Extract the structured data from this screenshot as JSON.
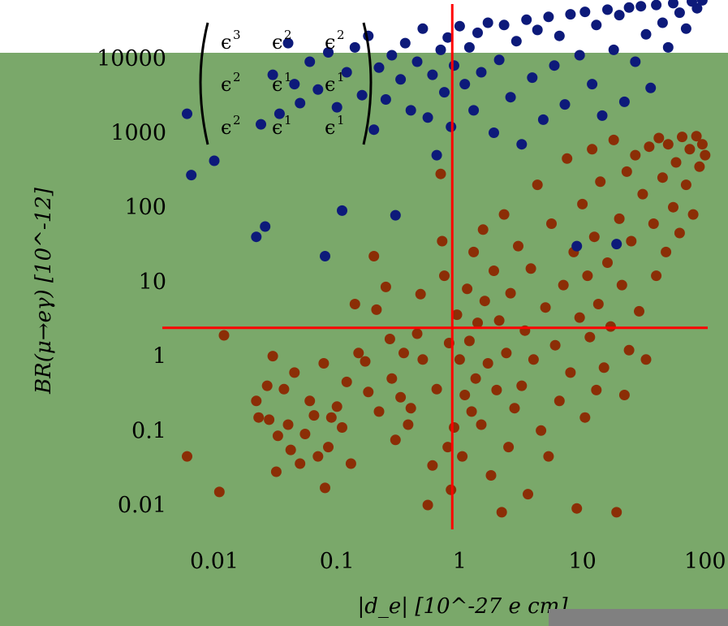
{
  "chart_data": {
    "type": "scatter",
    "x_scale": "log",
    "y_scale": "log",
    "xlim": [
      0.005,
      110
    ],
    "ylim": [
      0.005,
      50000
    ],
    "xlabel": "|d_e| [10^-27 e cm]",
    "ylabel": "BR(μ→eγ) [10^-12]",
    "x_ticks": [
      {
        "value": 0.01,
        "label": "0.01"
      },
      {
        "value": 0.1,
        "label": "0.1"
      },
      {
        "value": 1,
        "label": "1"
      },
      {
        "value": 10,
        "label": "10"
      },
      {
        "value": 100,
        "label": "100"
      }
    ],
    "y_ticks": [
      {
        "value": 0.01,
        "label": "0.01"
      },
      {
        "value": 0.1,
        "label": "0.1"
      },
      {
        "value": 1,
        "label": "1"
      },
      {
        "value": 10,
        "label": "10"
      },
      {
        "value": 100,
        "label": "100"
      },
      {
        "value": 1000,
        "label": "1000"
      },
      {
        "value": 10000,
        "label": "10000"
      }
    ],
    "reference_lines": {
      "vertical_x": 0.87,
      "horizontal_y": 2.4,
      "color": "#ff0000"
    },
    "matrix_annotation": {
      "rows": [
        [
          {
            "base": "ϵ",
            "exp": "3"
          },
          {
            "base": "ϵ",
            "exp": "2"
          },
          {
            "base": "ϵ",
            "exp": "2"
          }
        ],
        [
          {
            "base": "ϵ",
            "exp": "2"
          },
          {
            "base": "ϵ",
            "exp": "1"
          },
          {
            "base": "ϵ",
            "exp": "1"
          }
        ],
        [
          {
            "base": "ϵ",
            "exp": "2"
          },
          {
            "base": "ϵ",
            "exp": "1"
          },
          {
            "base": "ϵ",
            "exp": "1"
          }
        ]
      ]
    },
    "background_color": "#7aa86a",
    "series": [
      {
        "color": "#8b2e06",
        "points": [
          [
            0.006,
            0.045
          ],
          [
            0.011,
            0.015
          ],
          [
            0.012,
            1.9
          ],
          [
            0.022,
            0.25
          ],
          [
            0.023,
            0.15
          ],
          [
            0.027,
            0.4
          ],
          [
            0.028,
            0.14
          ],
          [
            0.03,
            1.0
          ],
          [
            0.032,
            0.028
          ],
          [
            0.033,
            0.085
          ],
          [
            0.037,
            0.36
          ],
          [
            0.04,
            0.12
          ],
          [
            0.042,
            0.055
          ],
          [
            0.045,
            0.6
          ],
          [
            0.05,
            0.036
          ],
          [
            0.055,
            0.09
          ],
          [
            0.06,
            0.25
          ],
          [
            0.065,
            0.16
          ],
          [
            0.07,
            0.045
          ],
          [
            0.078,
            0.8
          ],
          [
            0.08,
            0.017
          ],
          [
            0.085,
            0.06
          ],
          [
            0.09,
            0.15
          ],
          [
            0.1,
            0.21
          ],
          [
            0.11,
            0.11
          ],
          [
            0.12,
            0.45
          ],
          [
            0.13,
            0.036
          ],
          [
            0.14,
            5.0
          ],
          [
            0.15,
            1.1
          ],
          [
            0.17,
            0.85
          ],
          [
            0.18,
            0.33
          ],
          [
            0.2,
            22
          ],
          [
            0.21,
            4.2
          ],
          [
            0.22,
            0.18
          ],
          [
            0.25,
            8.5
          ],
          [
            0.27,
            1.7
          ],
          [
            0.28,
            0.5
          ],
          [
            0.3,
            0.075
          ],
          [
            0.33,
            0.28
          ],
          [
            0.35,
            1.1
          ],
          [
            0.38,
            0.12
          ],
          [
            0.4,
            0.2
          ],
          [
            0.45,
            2.0
          ],
          [
            0.48,
            6.8
          ],
          [
            0.5,
            0.9
          ],
          [
            0.55,
            0.01
          ],
          [
            0.6,
            0.034
          ],
          [
            0.65,
            0.36
          ],
          [
            0.7,
            280
          ],
          [
            0.72,
            35
          ],
          [
            0.75,
            12
          ],
          [
            0.8,
            0.06
          ],
          [
            0.82,
            1.5
          ],
          [
            0.85,
            0.016
          ],
          [
            0.9,
            0.11
          ],
          [
            0.95,
            3.6
          ],
          [
            1.0,
            0.9
          ],
          [
            1.05,
            0.045
          ],
          [
            1.1,
            0.3
          ],
          [
            1.15,
            8
          ],
          [
            1.2,
            1.6
          ],
          [
            1.25,
            0.18
          ],
          [
            1.3,
            25
          ],
          [
            1.35,
            0.5
          ],
          [
            1.4,
            2.8
          ],
          [
            1.5,
            0.12
          ],
          [
            1.55,
            50
          ],
          [
            1.6,
            5.5
          ],
          [
            1.7,
            0.8
          ],
          [
            1.8,
            0.025
          ],
          [
            1.9,
            14
          ],
          [
            2.0,
            0.35
          ],
          [
            2.1,
            3.0
          ],
          [
            2.2,
            0.008
          ],
          [
            2.3,
            80
          ],
          [
            2.4,
            1.1
          ],
          [
            2.5,
            0.06
          ],
          [
            2.6,
            7
          ],
          [
            2.8,
            0.2
          ],
          [
            3.0,
            30
          ],
          [
            3.2,
            0.4
          ],
          [
            3.4,
            2.2
          ],
          [
            3.6,
            0.014
          ],
          [
            3.8,
            15
          ],
          [
            4.0,
            0.9
          ],
          [
            4.3,
            200
          ],
          [
            4.6,
            0.1
          ],
          [
            5.0,
            4.5
          ],
          [
            5.3,
            0.045
          ],
          [
            5.6,
            60
          ],
          [
            6.0,
            1.4
          ],
          [
            6.5,
            0.25
          ],
          [
            7.0,
            9
          ],
          [
            7.5,
            450
          ],
          [
            8.0,
            0.6
          ],
          [
            8.5,
            25
          ],
          [
            9.0,
            0.009
          ],
          [
            9.5,
            3.3
          ],
          [
            10,
            110
          ],
          [
            10.5,
            0.15
          ],
          [
            11,
            12
          ],
          [
            11.5,
            1.8
          ],
          [
            12,
            600
          ],
          [
            12.5,
            40
          ],
          [
            13,
            0.35
          ],
          [
            13.5,
            5
          ],
          [
            14,
            220
          ],
          [
            15,
            0.7
          ],
          [
            16,
            18
          ],
          [
            17,
            2.5
          ],
          [
            18,
            800
          ],
          [
            19,
            0.008
          ],
          [
            20,
            70
          ],
          [
            21,
            9
          ],
          [
            22,
            0.3
          ],
          [
            23,
            300
          ],
          [
            24,
            1.2
          ],
          [
            25,
            35
          ],
          [
            27,
            500
          ],
          [
            29,
            4
          ],
          [
            31,
            150
          ],
          [
            33,
            0.9
          ],
          [
            35,
            650
          ],
          [
            38,
            60
          ],
          [
            40,
            12
          ],
          [
            42,
            850
          ],
          [
            45,
            250
          ],
          [
            48,
            25
          ],
          [
            50,
            700
          ],
          [
            55,
            100
          ],
          [
            58,
            400
          ],
          [
            62,
            45
          ],
          [
            65,
            880
          ],
          [
            70,
            200
          ],
          [
            75,
            600
          ],
          [
            80,
            80
          ],
          [
            85,
            900
          ],
          [
            90,
            350
          ],
          [
            95,
            700
          ],
          [
            100,
            500
          ]
        ]
      },
      {
        "color": "#0d1a7a",
        "points": [
          [
            0.006,
            1800
          ],
          [
            0.0065,
            270
          ],
          [
            0.01,
            420
          ],
          [
            0.022,
            40
          ],
          [
            0.024,
            1300
          ],
          [
            0.026,
            55
          ],
          [
            0.03,
            6000
          ],
          [
            0.034,
            1800
          ],
          [
            0.04,
            16000
          ],
          [
            0.045,
            4500
          ],
          [
            0.05,
            2500
          ],
          [
            0.06,
            9000
          ],
          [
            0.07,
            3800
          ],
          [
            0.08,
            22
          ],
          [
            0.085,
            12000
          ],
          [
            0.1,
            2200
          ],
          [
            0.11,
            90
          ],
          [
            0.12,
            6500
          ],
          [
            0.14,
            14000
          ],
          [
            0.16,
            3200
          ],
          [
            0.18,
            20000
          ],
          [
            0.2,
            1100
          ],
          [
            0.22,
            7500
          ],
          [
            0.25,
            2800
          ],
          [
            0.28,
            11000
          ],
          [
            0.3,
            78
          ],
          [
            0.33,
            5200
          ],
          [
            0.36,
            16000
          ],
          [
            0.4,
            2000
          ],
          [
            0.45,
            9000
          ],
          [
            0.5,
            25000
          ],
          [
            0.55,
            1600
          ],
          [
            0.6,
            6000
          ],
          [
            0.65,
            500
          ],
          [
            0.7,
            13000
          ],
          [
            0.75,
            3500
          ],
          [
            0.8,
            19000
          ],
          [
            0.85,
            1200
          ],
          [
            0.9,
            8000
          ],
          [
            1.0,
            27000
          ],
          [
            1.1,
            4500
          ],
          [
            1.2,
            14000
          ],
          [
            1.3,
            2000
          ],
          [
            1.4,
            22000
          ],
          [
            1.5,
            6500
          ],
          [
            1.7,
            30000
          ],
          [
            1.9,
            1000
          ],
          [
            2.1,
            9500
          ],
          [
            2.3,
            28000
          ],
          [
            2.6,
            3000
          ],
          [
            2.9,
            17000
          ],
          [
            3.2,
            700
          ],
          [
            3.5,
            33000
          ],
          [
            3.9,
            5500
          ],
          [
            4.3,
            24000
          ],
          [
            4.8,
            1500
          ],
          [
            5.3,
            36000
          ],
          [
            5.9,
            8000
          ],
          [
            6.5,
            20000
          ],
          [
            7.2,
            2400
          ],
          [
            8.0,
            39000
          ],
          [
            9.0,
            30
          ],
          [
            9.5,
            11000
          ],
          [
            10.5,
            42000
          ],
          [
            12,
            4500
          ],
          [
            13,
            28000
          ],
          [
            14.5,
            1700
          ],
          [
            16,
            45000
          ],
          [
            18,
            13000
          ],
          [
            19,
            32
          ],
          [
            20,
            38000
          ],
          [
            22,
            2600
          ],
          [
            24,
            48000
          ],
          [
            27,
            9000
          ],
          [
            30,
            50000
          ],
          [
            33,
            21000
          ],
          [
            36,
            4000
          ],
          [
            40,
            52000
          ],
          [
            45,
            30000
          ],
          [
            50,
            14000
          ],
          [
            55,
            55000
          ],
          [
            62,
            41000
          ],
          [
            70,
            25000
          ],
          [
            78,
            58000
          ],
          [
            86,
            47000
          ],
          [
            95,
            60000
          ]
        ]
      }
    ]
  }
}
